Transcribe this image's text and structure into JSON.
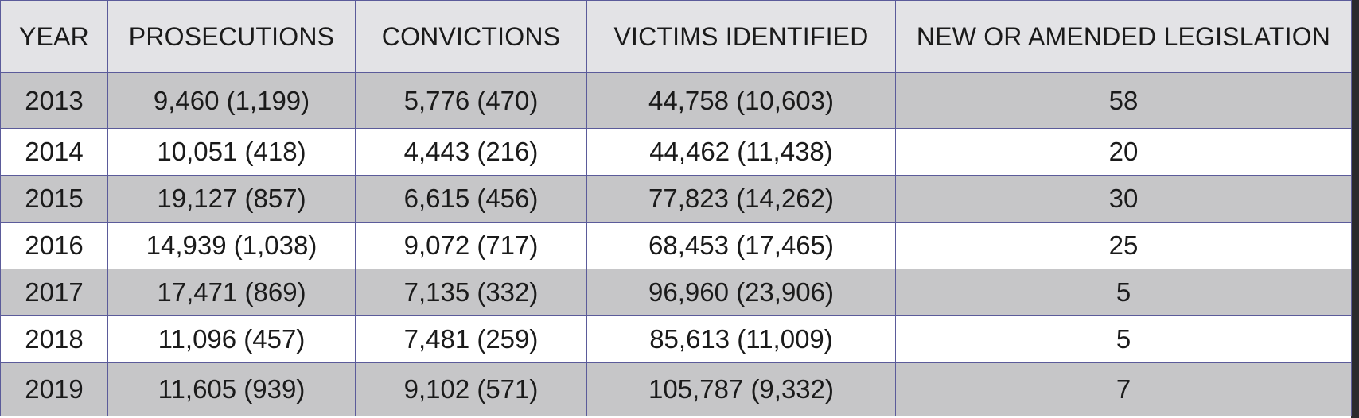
{
  "table": {
    "headers": [
      "YEAR",
      "PROSECUTIONS",
      "CONVICTIONS",
      "VICTIMS IDENTIFIED",
      "NEW OR AMENDED LEGISLATION"
    ],
    "rows": [
      [
        "2013",
        "9,460 (1,199)",
        "5,776 (470)",
        "44,758 (10,603)",
        "58"
      ],
      [
        "2014",
        "10,051 (418)",
        "4,443 (216)",
        "44,462 (11,438)",
        "20"
      ],
      [
        "2015",
        "19,127 (857)",
        "6,615 (456)",
        "77,823 (14,262)",
        "30"
      ],
      [
        "2016",
        "14,939 (1,038)",
        "9,072 (717)",
        "68,453 (17,465)",
        "25"
      ],
      [
        "2017",
        "17,471 (869)",
        "7,135 (332)",
        "96,960 (23,906)",
        "5"
      ],
      [
        "2018",
        "11,096 (457)",
        "7,481 (259)",
        "85,613 (11,009)",
        "5"
      ],
      [
        "2019",
        "11,605 (939)",
        "9,102 (571)",
        "105,787 (9,332)",
        "7"
      ]
    ]
  },
  "colors": {
    "header_bg": "#e3e3e6",
    "row_shaded": "#c6c6c8",
    "row_plain": "#ffffff",
    "border": "#5b5b9a",
    "frame_bg": "#2a2a2d"
  }
}
